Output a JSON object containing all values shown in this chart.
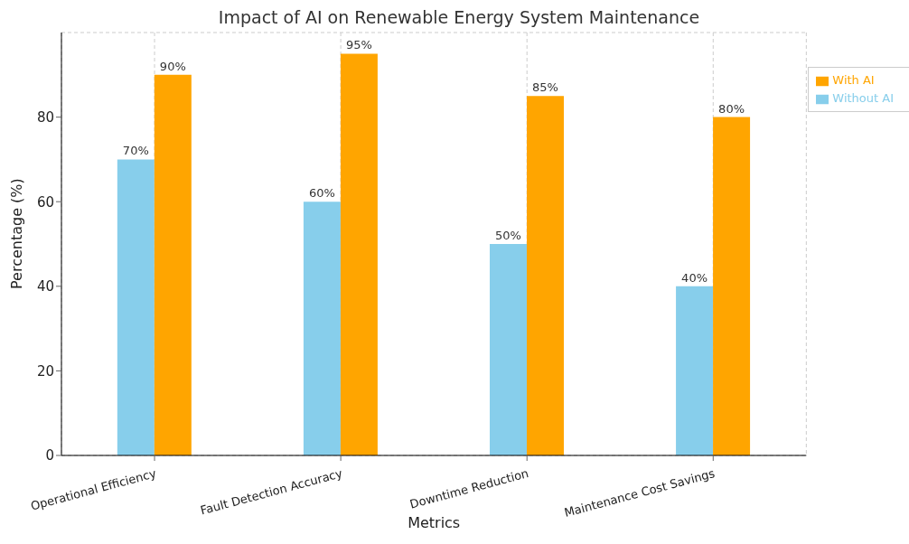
{
  "chart_data": {
    "type": "bar",
    "title": "Impact of AI on Renewable Energy System Maintenance",
    "xlabel": "Metrics",
    "ylabel": "Percentage (%)",
    "categories": [
      "Operational Efficiency",
      "Fault Detection Accuracy",
      "Downtime Reduction",
      "Maintenance Cost Savings"
    ],
    "series": [
      {
        "name": "Without AI",
        "color": "#87ceeb",
        "values": [
          70,
          60,
          50,
          40
        ],
        "value_labels": [
          "70%",
          "60%",
          "50%",
          "40%"
        ]
      },
      {
        "name": "With AI",
        "color": "#ffa500",
        "values": [
          90,
          95,
          85,
          80
        ],
        "value_labels": [
          "90%",
          "95%",
          "85%",
          "80%"
        ]
      }
    ],
    "ylim": [
      0,
      100
    ],
    "yticks": [
      0,
      20,
      40,
      60,
      80
    ],
    "grid": true,
    "legend": "top right"
  }
}
